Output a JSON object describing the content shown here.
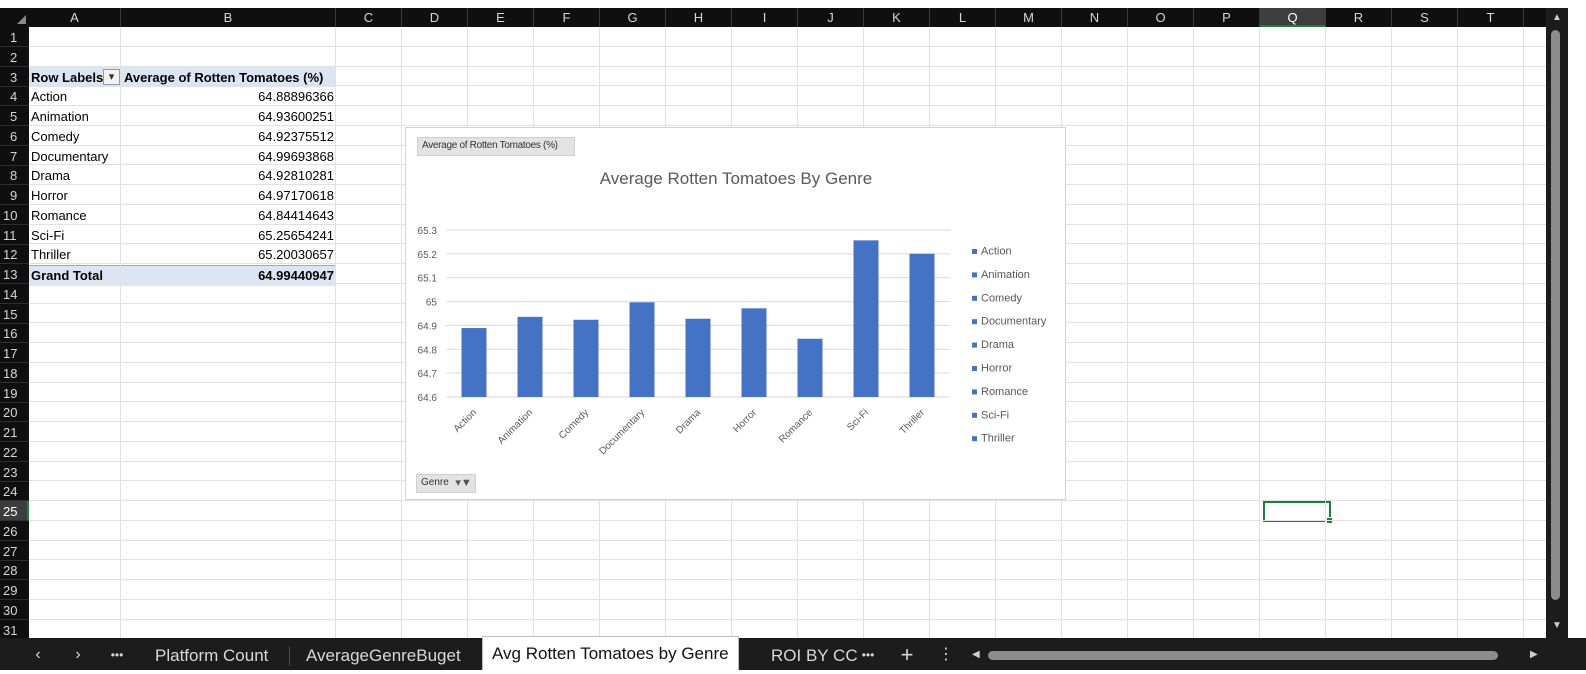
{
  "columns": [
    "A",
    "B",
    "C",
    "D",
    "E",
    "F",
    "G",
    "H",
    "I",
    "J",
    "K",
    "L",
    "M",
    "N",
    "O",
    "P",
    "Q",
    "R",
    "S",
    "T"
  ],
  "selected_column": "Q",
  "rows": [
    "1",
    "2",
    "3",
    "4",
    "5",
    "6",
    "7",
    "8",
    "9",
    "10",
    "11",
    "12",
    "13",
    "14",
    "15",
    "16",
    "17",
    "18",
    "19",
    "20",
    "21",
    "22",
    "23",
    "24",
    "25",
    "26",
    "27",
    "28",
    "29",
    "30",
    "31"
  ],
  "selected_row": "25",
  "pivot": {
    "header_row_labels": "Row Labels",
    "header_value": "Average of Rotten Tomatoes (%)",
    "rows": [
      {
        "label": "Action",
        "value": "64.88896366"
      },
      {
        "label": "Animation",
        "value": "64.93600251"
      },
      {
        "label": "Comedy",
        "value": "64.92375512"
      },
      {
        "label": "Documentary",
        "value": "64.99693868"
      },
      {
        "label": "Drama",
        "value": "64.92810281"
      },
      {
        "label": "Horror",
        "value": "64.97170618"
      },
      {
        "label": "Romance",
        "value": "64.84414643"
      },
      {
        "label": "Sci-Fi",
        "value": "65.25654241"
      },
      {
        "label": "Thriller",
        "value": "65.20030657"
      }
    ],
    "grand_total_label": "Grand Total",
    "grand_total_value": "64.99440947"
  },
  "chart_data": {
    "type": "bar",
    "title": "Average Rotten Tomatoes By Genre",
    "field_button": "Average of Rotten Tomatoes (%)",
    "axis_field_button": "Genre",
    "categories": [
      "Action",
      "Animation",
      "Comedy",
      "Documentary",
      "Drama",
      "Horror",
      "Romance",
      "Sci-Fi",
      "Thriller"
    ],
    "values": [
      64.88896366,
      64.93600251,
      64.92375512,
      64.99693868,
      64.92810281,
      64.97170618,
      64.84414643,
      65.25654241,
      65.20030657
    ],
    "ylim": [
      64.6,
      65.3
    ],
    "yticks": [
      "64.6",
      "64.7",
      "64.8",
      "64.9",
      "65",
      "65.1",
      "65.2",
      "65.3"
    ],
    "legend": [
      "Action",
      "Animation",
      "Comedy",
      "Documentary",
      "Drama",
      "Horror",
      "Romance",
      "Sci-Fi",
      "Thriller"
    ],
    "legend_position": "right",
    "bar_color": "#4472c4",
    "grid": true
  },
  "tabs": {
    "prev": "‹",
    "next": "›",
    "more_left": "•••",
    "items": [
      "Platform Count",
      "AverageGenreBuget",
      "Avg Rotten Tomatoes by Genre",
      "ROI BY CC"
    ],
    "active": "Avg Rotten Tomatoes by Genre",
    "more_right": "•••",
    "add": "+",
    "options": "⋮"
  },
  "colors": {
    "header_bg": "#0f0f10",
    "select_green": "#1e7e3e",
    "pivot_header": "#dce6f2"
  }
}
